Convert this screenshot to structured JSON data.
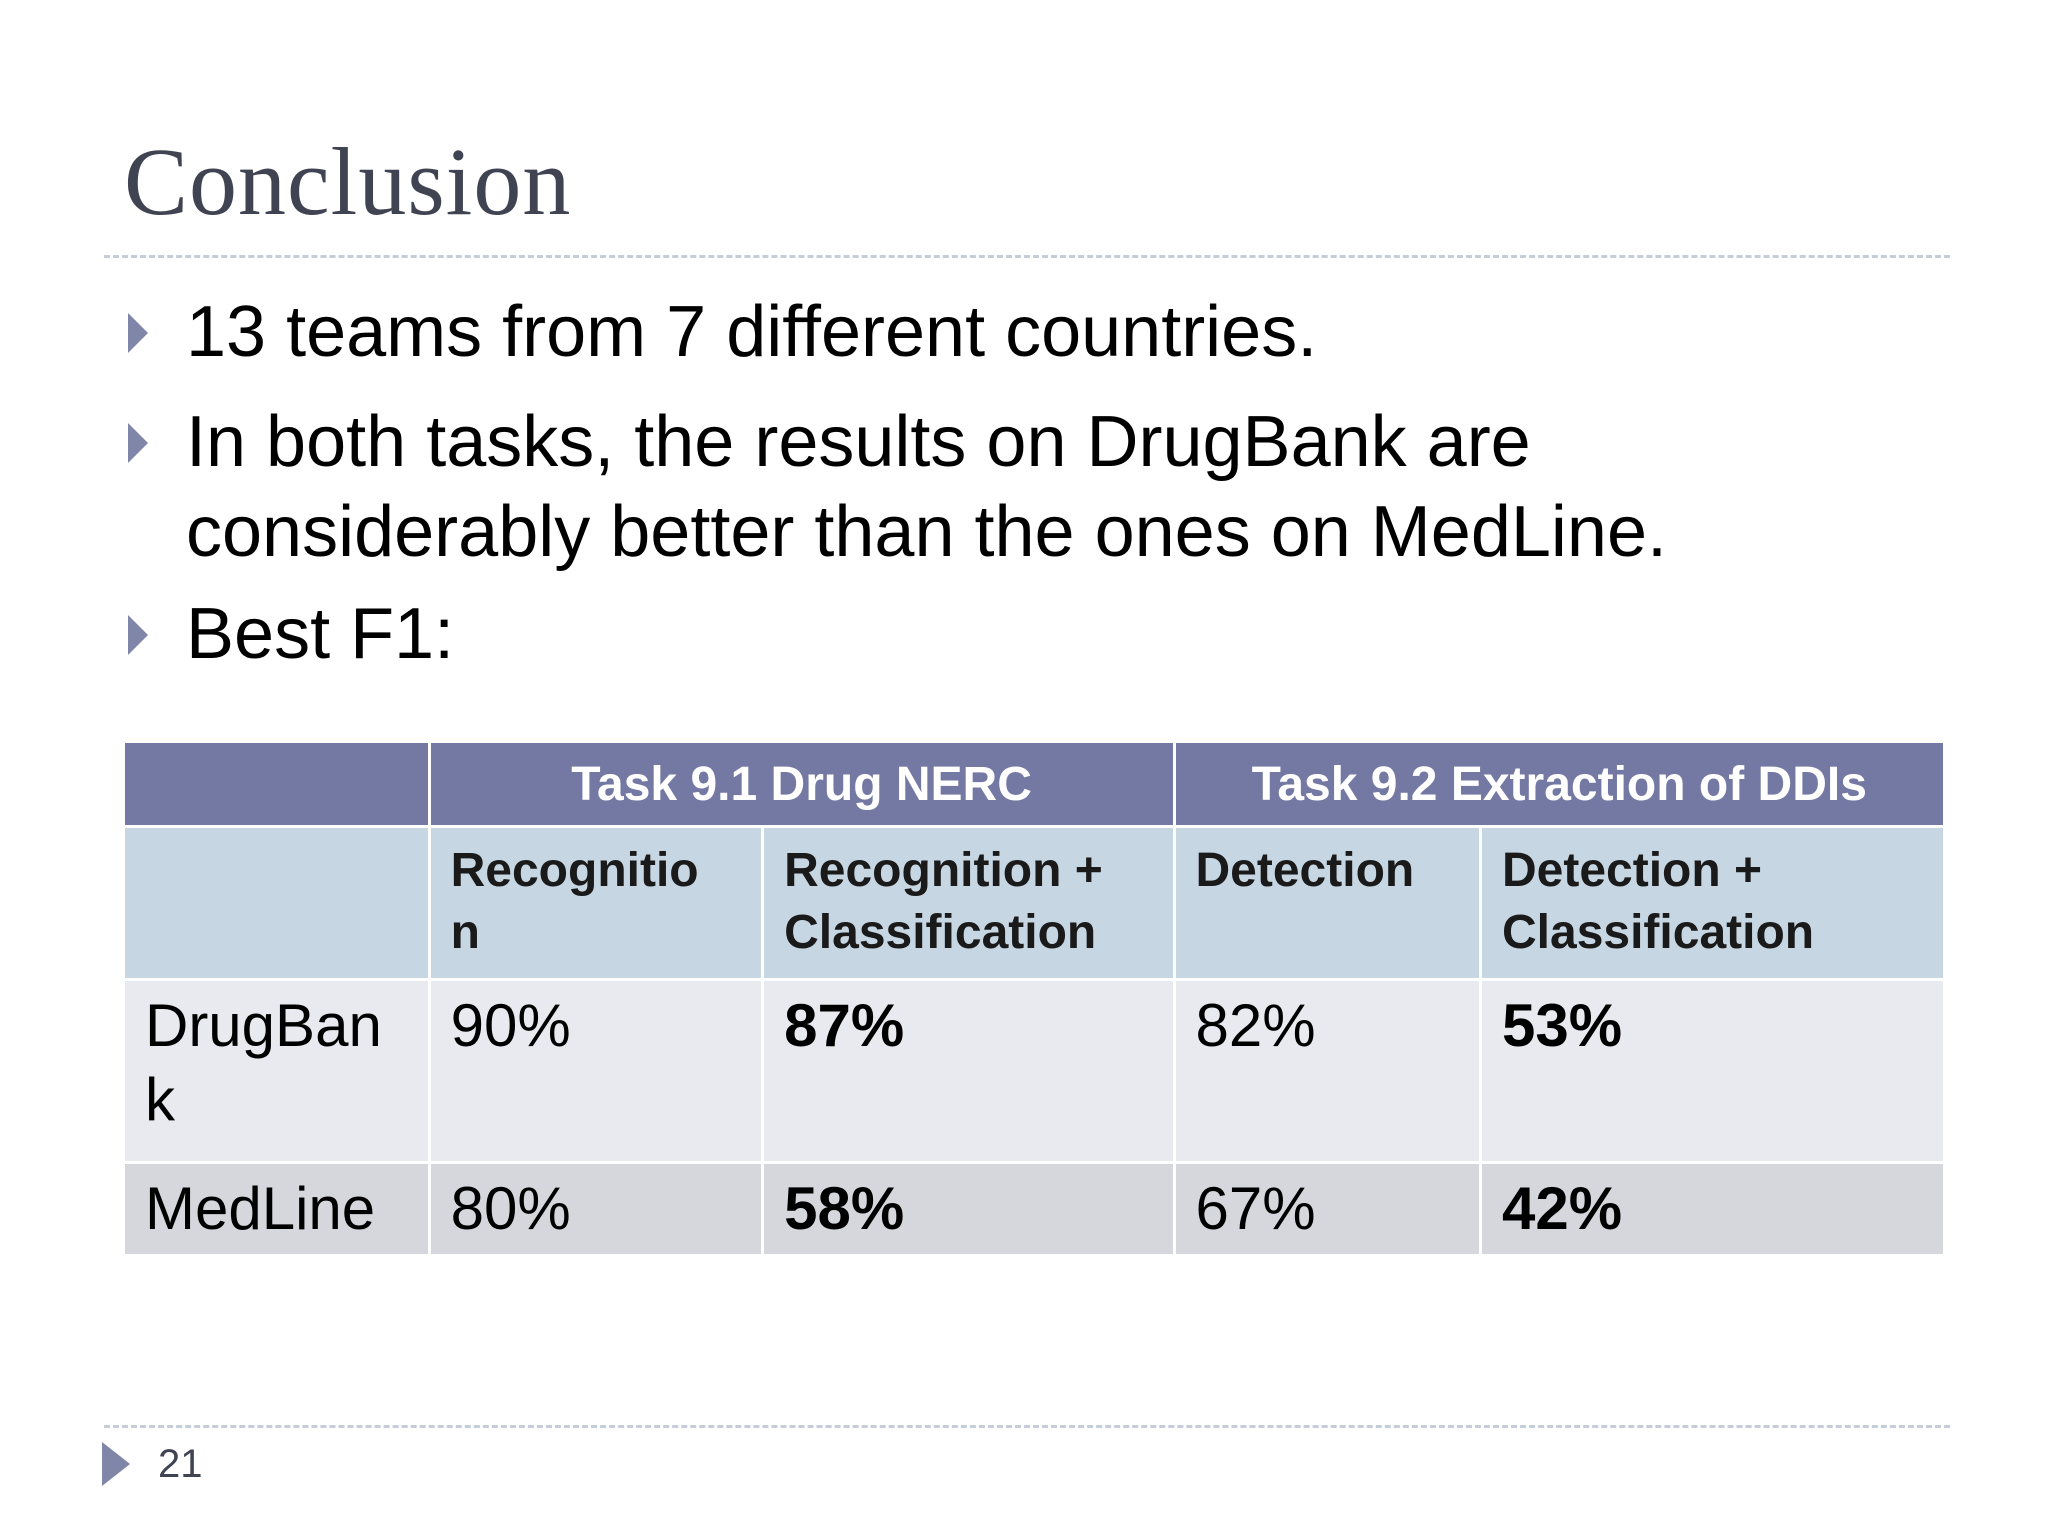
{
  "slide": {
    "title": "Conclusion",
    "bullets": [
      "13 teams from 7 different countries.",
      "In both tasks, the results on DrugBank are",
      "considerably better than the ones on MedLine.",
      "Best F1:"
    ],
    "page_number": "21"
  },
  "table": {
    "group_headers": [
      "",
      "Task 9.1 Drug NERC",
      "Task 9.2 Extraction of DDIs"
    ],
    "sub_headers": [
      "",
      "Recognitio n",
      "Recognition + Classification",
      "Detection",
      "Detection + Classification"
    ],
    "sub_header_lines": [
      [
        "",
        ""
      ],
      [
        "Recognitio",
        "n"
      ],
      [
        "Recognition +",
        "Classification"
      ],
      [
        "Detection",
        ""
      ],
      [
        "Detection +",
        "Classification"
      ]
    ],
    "rows": [
      {
        "label": "DrugBank",
        "label_lines": [
          "DrugBan",
          "k"
        ],
        "values": [
          "90%",
          "87%",
          "82%",
          "53%"
        ]
      },
      {
        "label": "MedLine",
        "label_lines": [
          "MedLine"
        ],
        "values": [
          "80%",
          "58%",
          "67%",
          "42%"
        ]
      }
    ]
  },
  "colors": {
    "group_header_bg": "#7479a4",
    "sub_header_bg": "#c7d6e3",
    "row_light_bg": "#e9eaef",
    "row_dark_bg": "#d6d7dd",
    "bullet_arrow": "#7f86a8",
    "title_text": "#404352"
  },
  "icons": {
    "bullet": "triangle-right-icon",
    "footer": "triangle-right-icon"
  }
}
